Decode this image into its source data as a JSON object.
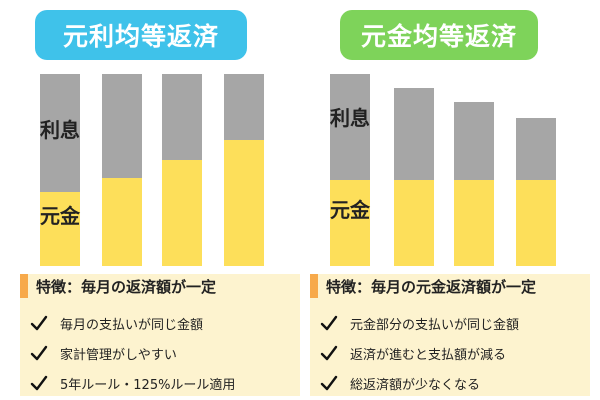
{
  "left": {
    "title": "元利均等返済",
    "label_interest": "利息",
    "label_principal": "元金",
    "feature_title": "特徴：毎月の返済額が一定",
    "features": [
      "毎月の支払いが同じ金額",
      "家計管理がしやすい",
      "5年ルール・125%ルール適用"
    ],
    "accent_color": "#3fc2ea"
  },
  "right": {
    "title": "元金均等返済",
    "label_interest": "利息",
    "label_principal": "元金",
    "feature_title": "特徴：毎月の元金返済額が一定",
    "features": [
      "元金部分の支払いが同じ金額",
      "返済が進むと支払額が減る",
      "総返済額が少なくなる"
    ],
    "accent_color": "#7ed35a"
  },
  "colors": {
    "interest": "#a6a6a6",
    "principal": "#fddf5a",
    "feature_bg": "#fdf3cf",
    "feature_accent": "#f7a94a"
  },
  "icons": {
    "check": "check-icon"
  }
}
